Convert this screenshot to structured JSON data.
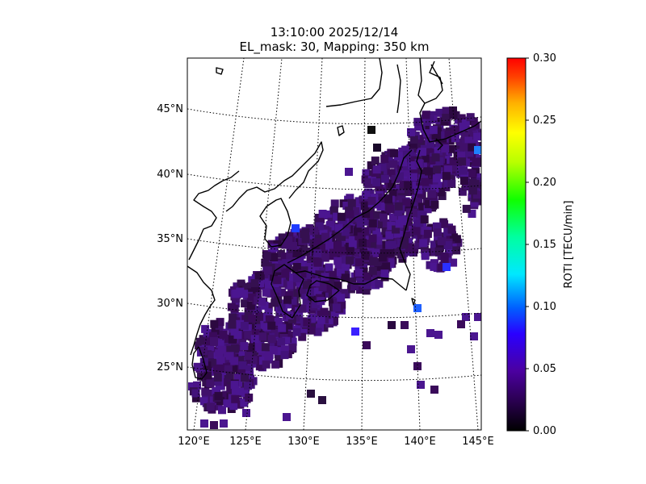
{
  "header": {
    "title_line1": "13:10:00 2025/12/14",
    "title_line2": "EL_mask: 30, Mapping: 350 km"
  },
  "map": {
    "lon_ticks": [
      {
        "value": 120,
        "label": "120°E"
      },
      {
        "value": 125,
        "label": "125°E"
      },
      {
        "value": 130,
        "label": "130°E"
      },
      {
        "value": 135,
        "label": "135°E"
      },
      {
        "value": 140,
        "label": "140°E"
      },
      {
        "value": 145,
        "label": "145°E"
      }
    ],
    "lat_ticks": [
      {
        "value": 25,
        "label": "25°N"
      },
      {
        "value": 30,
        "label": "30°N"
      },
      {
        "value": 35,
        "label": "35°N"
      },
      {
        "value": 40,
        "label": "40°N"
      },
      {
        "value": 45,
        "label": "45°N"
      }
    ],
    "extent": {
      "lon": [
        120,
        145
      ],
      "lat": [
        20,
        49
      ]
    },
    "gridlines": "dotted",
    "colors": {
      "coastline": "#000000",
      "low_roti": "#3a0a5a",
      "mid_roti": "#4a1488",
      "high_roti": "#1f3cff"
    }
  },
  "colorbar": {
    "label": "ROTI [TECU/min]",
    "ticks": [
      "0.00",
      "0.05",
      "0.10",
      "0.15",
      "0.20",
      "0.25",
      "0.30"
    ],
    "range": [
      0,
      0.3
    ],
    "colormap": "gist_ncar-like (black-purple-blue-cyan-green-yellow-orange-red)"
  }
}
